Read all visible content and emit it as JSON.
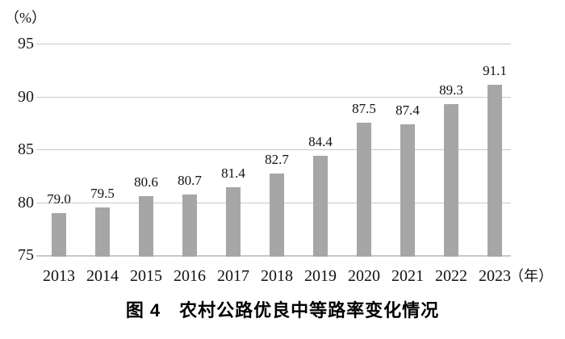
{
  "chart_data": {
    "type": "bar",
    "title": "图 4　农村公路优良中等路率变化情况",
    "y_unit_label": "（%）",
    "x_unit_label": "（年）",
    "categories": [
      "2013",
      "2014",
      "2015",
      "2016",
      "2017",
      "2018",
      "2019",
      "2020",
      "2021",
      "2022",
      "2023"
    ],
    "values": [
      79.0,
      79.5,
      80.6,
      80.7,
      81.4,
      82.7,
      84.4,
      87.5,
      87.4,
      89.3,
      91.1
    ],
    "value_labels": [
      "79.0",
      "79.5",
      "80.6",
      "80.7",
      "81.4",
      "82.7",
      "84.4",
      "87.5",
      "87.4",
      "89.3",
      "91.1"
    ],
    "yticks": [
      75,
      80,
      85,
      90,
      95
    ],
    "ylim": [
      75,
      95
    ],
    "grid": true,
    "legend": "none",
    "bar_color": "#a6a6a6",
    "grid_color": "#c9c9c9",
    "text_color": "#1a1a1a"
  }
}
